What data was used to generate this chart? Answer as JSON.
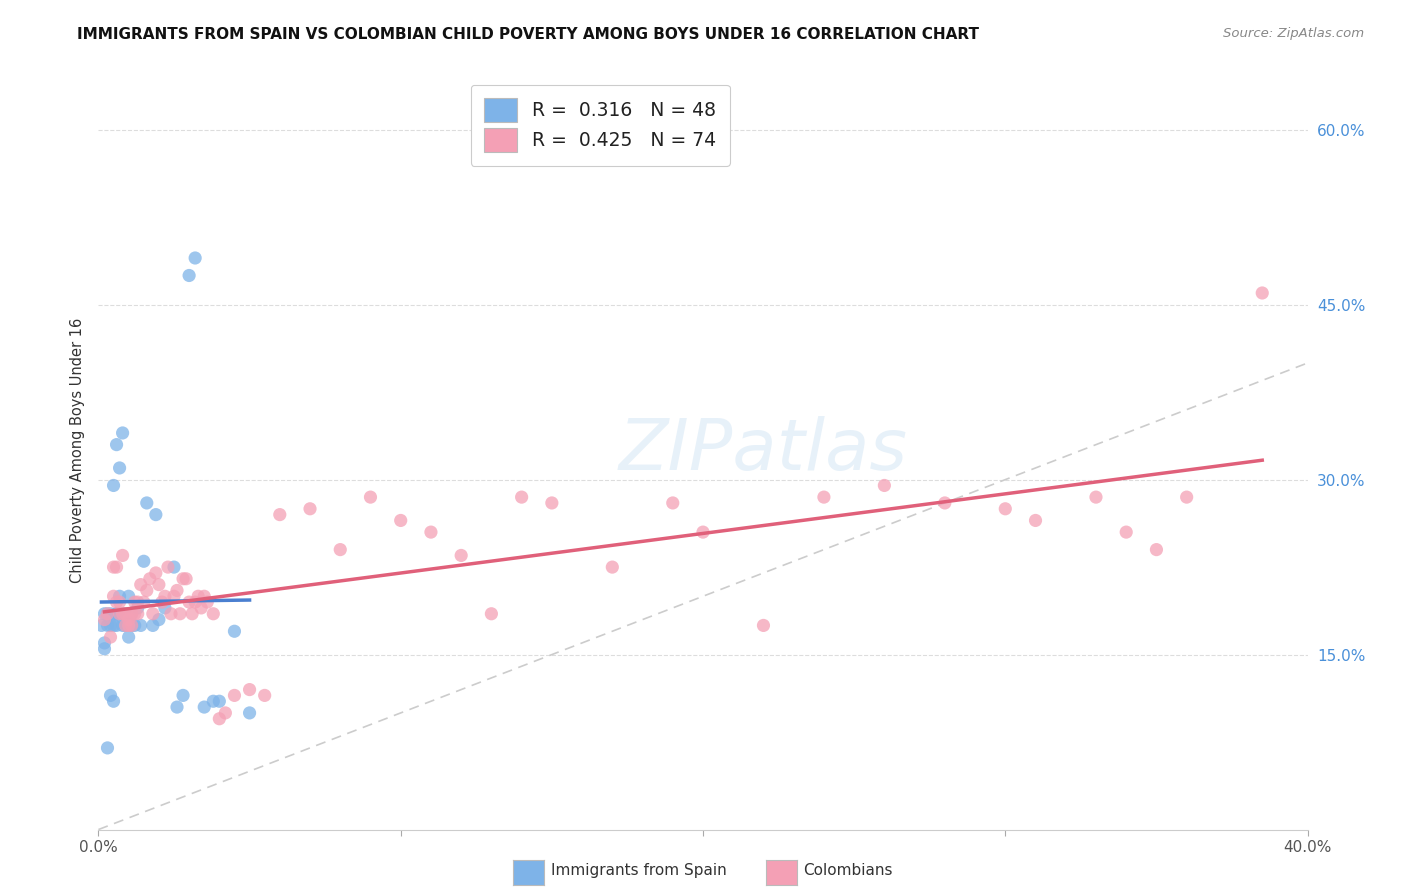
{
  "title": "IMMIGRANTS FROM SPAIN VS COLOMBIAN CHILD POVERTY AMONG BOYS UNDER 16 CORRELATION CHART",
  "source": "Source: ZipAtlas.com",
  "ylabel": "Child Poverty Among Boys Under 16",
  "xlim": [
    0.0,
    0.4
  ],
  "ylim": [
    0.0,
    0.65
  ],
  "xticks": [
    0.0,
    0.1,
    0.2,
    0.3,
    0.4
  ],
  "xtick_labels": [
    "0.0%",
    "",
    "",
    "",
    "40.0%"
  ],
  "ytick_labels_right": [
    "15.0%",
    "30.0%",
    "45.0%",
    "60.0%"
  ],
  "yticks_right": [
    0.15,
    0.3,
    0.45,
    0.6
  ],
  "color_spain": "#7EB3E8",
  "color_colombia": "#F4A0B5",
  "color_spain_line": "#4A7FD0",
  "color_colombia_line": "#E0607A",
  "color_diag_line": "#CCCCCC",
  "background_color": "#FFFFFF",
  "spain_x": [
    0.001,
    0.002,
    0.002,
    0.002,
    0.003,
    0.003,
    0.003,
    0.004,
    0.004,
    0.004,
    0.005,
    0.005,
    0.005,
    0.006,
    0.006,
    0.006,
    0.006,
    0.007,
    0.007,
    0.007,
    0.008,
    0.008,
    0.008,
    0.009,
    0.009,
    0.01,
    0.01,
    0.011,
    0.011,
    0.012,
    0.013,
    0.014,
    0.015,
    0.016,
    0.018,
    0.019,
    0.02,
    0.022,
    0.025,
    0.026,
    0.028,
    0.03,
    0.032,
    0.035,
    0.038,
    0.04,
    0.045,
    0.05
  ],
  "spain_y": [
    0.175,
    0.16,
    0.185,
    0.155,
    0.07,
    0.185,
    0.175,
    0.115,
    0.185,
    0.175,
    0.11,
    0.175,
    0.295,
    0.185,
    0.185,
    0.175,
    0.33,
    0.185,
    0.2,
    0.31,
    0.175,
    0.185,
    0.34,
    0.175,
    0.185,
    0.2,
    0.165,
    0.175,
    0.185,
    0.175,
    0.19,
    0.175,
    0.23,
    0.28,
    0.175,
    0.27,
    0.18,
    0.19,
    0.225,
    0.105,
    0.115,
    0.475,
    0.49,
    0.105,
    0.11,
    0.11,
    0.17,
    0.1
  ],
  "colombia_x": [
    0.002,
    0.003,
    0.004,
    0.005,
    0.005,
    0.006,
    0.006,
    0.007,
    0.007,
    0.008,
    0.008,
    0.009,
    0.009,
    0.01,
    0.01,
    0.011,
    0.011,
    0.012,
    0.012,
    0.013,
    0.013,
    0.014,
    0.015,
    0.016,
    0.017,
    0.018,
    0.019,
    0.02,
    0.021,
    0.022,
    0.023,
    0.024,
    0.025,
    0.026,
    0.027,
    0.028,
    0.029,
    0.03,
    0.031,
    0.032,
    0.033,
    0.034,
    0.035,
    0.036,
    0.038,
    0.04,
    0.042,
    0.045,
    0.05,
    0.055,
    0.06,
    0.07,
    0.08,
    0.09,
    0.1,
    0.11,
    0.12,
    0.13,
    0.14,
    0.15,
    0.17,
    0.19,
    0.2,
    0.22,
    0.24,
    0.26,
    0.28,
    0.3,
    0.31,
    0.33,
    0.34,
    0.35,
    0.36,
    0.385
  ],
  "colombia_y": [
    0.18,
    0.185,
    0.165,
    0.2,
    0.225,
    0.195,
    0.225,
    0.195,
    0.185,
    0.185,
    0.235,
    0.175,
    0.185,
    0.18,
    0.175,
    0.185,
    0.175,
    0.195,
    0.185,
    0.195,
    0.185,
    0.21,
    0.195,
    0.205,
    0.215,
    0.185,
    0.22,
    0.21,
    0.195,
    0.2,
    0.225,
    0.185,
    0.2,
    0.205,
    0.185,
    0.215,
    0.215,
    0.195,
    0.185,
    0.195,
    0.2,
    0.19,
    0.2,
    0.195,
    0.185,
    0.095,
    0.1,
    0.115,
    0.12,
    0.115,
    0.27,
    0.275,
    0.24,
    0.285,
    0.265,
    0.255,
    0.235,
    0.185,
    0.285,
    0.28,
    0.225,
    0.28,
    0.255,
    0.175,
    0.285,
    0.295,
    0.28,
    0.275,
    0.265,
    0.285,
    0.255,
    0.24,
    0.285,
    0.46
  ],
  "watermark": "ZIPatlas",
  "legend_line1": "R =  0.316   N = 48",
  "legend_line2": "R =  0.425   N = 74"
}
